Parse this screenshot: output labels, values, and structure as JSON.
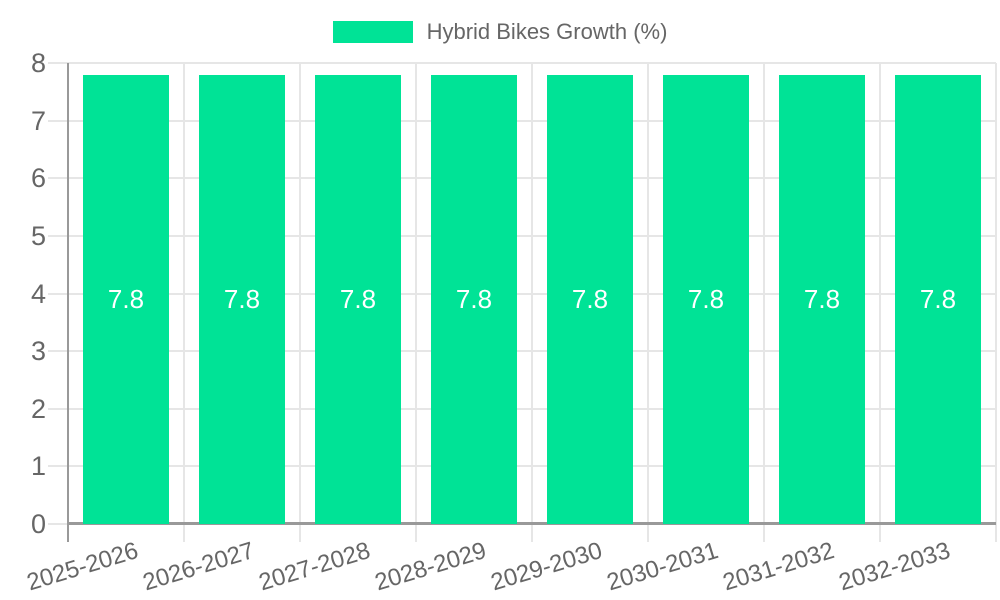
{
  "chart_data": {
    "type": "bar",
    "legend": [
      "Hybrid Bikes Growth (%)"
    ],
    "legend_position": "top",
    "categories": [
      "2025-2026",
      "2026-2027",
      "2027-2028",
      "2028-2029",
      "2029-2030",
      "2030-2031",
      "2031-2032",
      "2032-2033"
    ],
    "series": [
      {
        "name": "Hybrid Bikes Growth (%)",
        "values": [
          7.8,
          7.8,
          7.8,
          7.8,
          7.8,
          7.8,
          7.8,
          7.8
        ]
      }
    ],
    "data_labels": [
      "7.8",
      "7.8",
      "7.8",
      "7.8",
      "7.8",
      "7.8",
      "7.8",
      "7.8"
    ],
    "ylim": [
      0,
      8
    ],
    "yticks": [
      "0",
      "1",
      "2",
      "3",
      "4",
      "5",
      "6",
      "7",
      "8"
    ],
    "xlabel": "",
    "ylabel": "",
    "grid": true,
    "colors": {
      "bar": "#00E396",
      "axis": "#999999",
      "grid": "#E6E6E6",
      "tick_label": "#666666",
      "legend_label": "#666666",
      "data_label": "#FFFFFF",
      "background": "#FFFFFF"
    }
  }
}
